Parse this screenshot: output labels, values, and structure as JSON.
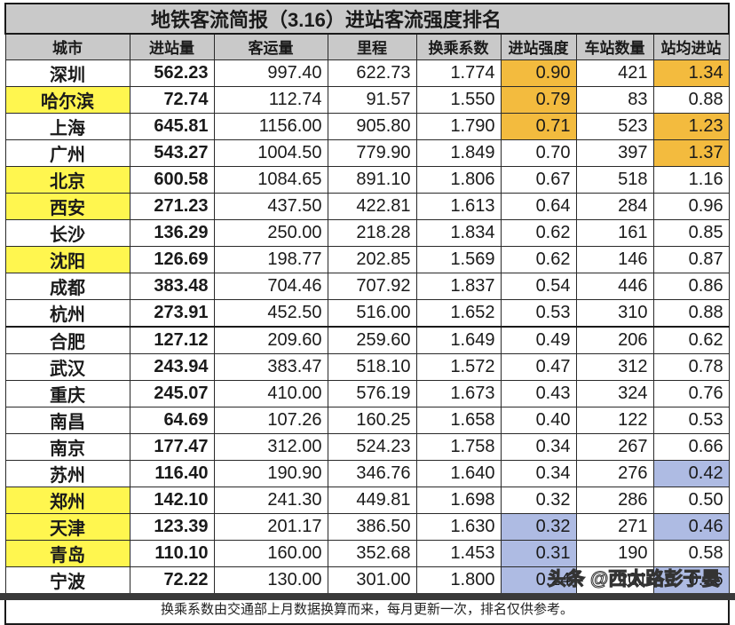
{
  "title": "地铁客流简报（3.16）进站客流强度排名",
  "headers": [
    "城市",
    "进站量",
    "客运量",
    "里程",
    "换乘系数",
    "进站强度",
    "车站数量",
    "站均进站"
  ],
  "rows": [
    {
      "city": "深圳",
      "hl": false,
      "inflow": "562.23",
      "volume": "997.40",
      "mileage": "622.73",
      "transfer": "1.774",
      "intensity": "0.90",
      "int_color": "orange",
      "stations": "421",
      "avg": "1.34",
      "avg_color": "orange"
    },
    {
      "city": "哈尔滨",
      "hl": true,
      "inflow": "72.74",
      "volume": "112.74",
      "mileage": "91.57",
      "transfer": "1.550",
      "intensity": "0.79",
      "int_color": "orange",
      "stations": "83",
      "avg": "0.88",
      "avg_color": ""
    },
    {
      "city": "上海",
      "hl": false,
      "inflow": "645.81",
      "volume": "1156.00",
      "mileage": "905.80",
      "transfer": "1.790",
      "intensity": "0.71",
      "int_color": "orange",
      "stations": "523",
      "avg": "1.23",
      "avg_color": "orange"
    },
    {
      "city": "广州",
      "hl": false,
      "inflow": "543.27",
      "volume": "1004.50",
      "mileage": "779.90",
      "transfer": "1.849",
      "intensity": "0.70",
      "int_color": "",
      "stations": "397",
      "avg": "1.37",
      "avg_color": "orange"
    },
    {
      "city": "北京",
      "hl": true,
      "inflow": "600.58",
      "volume": "1084.65",
      "mileage": "891.10",
      "transfer": "1.806",
      "intensity": "0.67",
      "int_color": "",
      "stations": "518",
      "avg": "1.16",
      "avg_color": ""
    },
    {
      "city": "西安",
      "hl": true,
      "inflow": "271.23",
      "volume": "437.50",
      "mileage": "422.81",
      "transfer": "1.613",
      "intensity": "0.64",
      "int_color": "",
      "stations": "284",
      "avg": "0.96",
      "avg_color": ""
    },
    {
      "city": "长沙",
      "hl": false,
      "inflow": "136.29",
      "volume": "250.00",
      "mileage": "218.28",
      "transfer": "1.834",
      "intensity": "0.62",
      "int_color": "",
      "stations": "161",
      "avg": "0.85",
      "avg_color": ""
    },
    {
      "city": "沈阳",
      "hl": true,
      "inflow": "126.69",
      "volume": "198.77",
      "mileage": "202.85",
      "transfer": "1.569",
      "intensity": "0.62",
      "int_color": "",
      "stations": "146",
      "avg": "0.87",
      "avg_color": ""
    },
    {
      "city": "成都",
      "hl": false,
      "inflow": "383.48",
      "volume": "704.46",
      "mileage": "707.92",
      "transfer": "1.837",
      "intensity": "0.54",
      "int_color": "",
      "stations": "446",
      "avg": "0.86",
      "avg_color": ""
    },
    {
      "city": "杭州",
      "hl": false,
      "inflow": "273.91",
      "volume": "452.50",
      "mileage": "516.00",
      "transfer": "1.652",
      "intensity": "0.53",
      "int_color": "",
      "stations": "310",
      "avg": "0.88",
      "avg_color": ""
    },
    {
      "city": "合肥",
      "hl": false,
      "inflow": "127.12",
      "volume": "209.60",
      "mileage": "259.60",
      "transfer": "1.649",
      "intensity": "0.49",
      "int_color": "",
      "stations": "206",
      "avg": "0.62",
      "avg_color": ""
    },
    {
      "city": "武汉",
      "hl": false,
      "inflow": "243.94",
      "volume": "383.47",
      "mileage": "518.10",
      "transfer": "1.572",
      "intensity": "0.47",
      "int_color": "",
      "stations": "312",
      "avg": "0.78",
      "avg_color": ""
    },
    {
      "city": "重庆",
      "hl": false,
      "inflow": "245.07",
      "volume": "410.00",
      "mileage": "576.19",
      "transfer": "1.673",
      "intensity": "0.43",
      "int_color": "",
      "stations": "324",
      "avg": "0.76",
      "avg_color": ""
    },
    {
      "city": "南昌",
      "hl": false,
      "inflow": "64.69",
      "volume": "107.26",
      "mileage": "160.25",
      "transfer": "1.658",
      "intensity": "0.40",
      "int_color": "",
      "stations": "122",
      "avg": "0.53",
      "avg_color": ""
    },
    {
      "city": "南京",
      "hl": false,
      "inflow": "177.47",
      "volume": "312.00",
      "mileage": "524.23",
      "transfer": "1.758",
      "intensity": "0.34",
      "int_color": "",
      "stations": "267",
      "avg": "0.66",
      "avg_color": ""
    },
    {
      "city": "苏州",
      "hl": false,
      "inflow": "116.40",
      "volume": "190.90",
      "mileage": "346.76",
      "transfer": "1.640",
      "intensity": "0.34",
      "int_color": "",
      "stations": "276",
      "avg": "0.42",
      "avg_color": "blue"
    },
    {
      "city": "郑州",
      "hl": true,
      "inflow": "142.10",
      "volume": "241.30",
      "mileage": "449.81",
      "transfer": "1.698",
      "intensity": "0.32",
      "int_color": "",
      "stations": "286",
      "avg": "0.50",
      "avg_color": ""
    },
    {
      "city": "天津",
      "hl": true,
      "inflow": "123.39",
      "volume": "201.17",
      "mileage": "386.50",
      "transfer": "1.630",
      "intensity": "0.32",
      "int_color": "blue",
      "stations": "271",
      "avg": "0.46",
      "avg_color": "blue"
    },
    {
      "city": "青岛",
      "hl": true,
      "inflow": "110.10",
      "volume": "160.00",
      "mileage": "352.68",
      "transfer": "1.453",
      "intensity": "0.31",
      "int_color": "blue",
      "stations": "190",
      "avg": "0.58",
      "avg_color": ""
    },
    {
      "city": "宁波",
      "hl": false,
      "inflow": "72.22",
      "volume": "130.00",
      "mileage": "301.00",
      "transfer": "1.800",
      "intensity": "0.24",
      "int_color": "blue",
      "stations": "201",
      "avg": "0.36",
      "avg_color": "blue"
    }
  ],
  "footnote": "换乘系数由交通部上月数据换算而来，每月更新一次，排名仅供参考。",
  "watermark": "头条 @西太路彭于晏",
  "colors": {
    "header_gray": "#c9c9c9",
    "city_yellow": "#fff64f",
    "top_orange": "#f3bb3e",
    "bottom_blue": "#aebbe3"
  }
}
